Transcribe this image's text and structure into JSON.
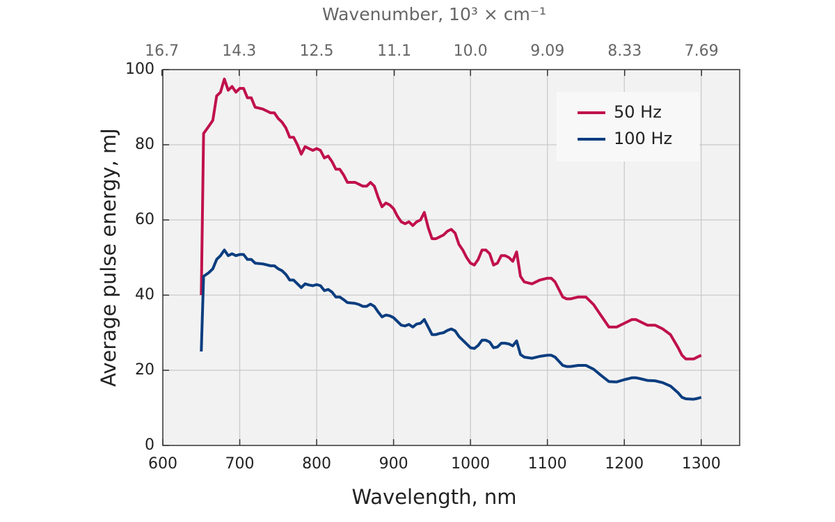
{
  "chart_data": {
    "type": "line",
    "xlabel": "Wavelength, nm",
    "ylabel": "Average pulse energy, mJ",
    "x2label": "Wavenumber, 10³ × cm⁻¹",
    "x": [
      650,
      653,
      660,
      665,
      670,
      675,
      680,
      685,
      690,
      695,
      700,
      705,
      710,
      715,
      720,
      730,
      740,
      745,
      750,
      755,
      760,
      765,
      770,
      775,
      780,
      785,
      790,
      795,
      800,
      805,
      810,
      815,
      820,
      825,
      830,
      835,
      840,
      850,
      855,
      860,
      865,
      870,
      875,
      880,
      885,
      890,
      895,
      900,
      905,
      910,
      915,
      920,
      925,
      930,
      935,
      940,
      945,
      950,
      955,
      960,
      965,
      970,
      975,
      980,
      985,
      990,
      995,
      1000,
      1005,
      1010,
      1015,
      1020,
      1025,
      1030,
      1035,
      1040,
      1045,
      1050,
      1055,
      1060,
      1065,
      1070,
      1080,
      1090,
      1100,
      1105,
      1110,
      1120,
      1125,
      1130,
      1140,
      1150,
      1155,
      1160,
      1170,
      1180,
      1190,
      1200,
      1210,
      1215,
      1220,
      1230,
      1240,
      1250,
      1260,
      1270,
      1275,
      1280,
      1290,
      1295,
      1300
    ],
    "series": [
      {
        "name": "50 Hz",
        "color": "#c0114b",
        "values": [
          40,
          83,
          85,
          86.5,
          93,
          94,
          97.5,
          94.5,
          95.5,
          94,
          95,
          95,
          92.5,
          92.5,
          90,
          89.5,
          88.5,
          88.5,
          87,
          86,
          84.5,
          82,
          82,
          80,
          77.5,
          79.5,
          79,
          78.5,
          79,
          78.5,
          76.5,
          77,
          75.5,
          73.5,
          73.5,
          72,
          70,
          70,
          69.5,
          69,
          69,
          70,
          69,
          66,
          63.5,
          64.5,
          64,
          63,
          61,
          59.5,
          59,
          59.5,
          58.5,
          59.5,
          60,
          62,
          58,
          55,
          55,
          55.5,
          56,
          57,
          57.5,
          56.5,
          53.5,
          52,
          50,
          48.5,
          48,
          49.5,
          52,
          52,
          51,
          48,
          48.5,
          50.5,
          50.5,
          50,
          49,
          51.5,
          45,
          43.5,
          43,
          44,
          44.5,
          44.5,
          43.5,
          39.5,
          39,
          39,
          39.5,
          39.5,
          38.5,
          37.5,
          34.5,
          31.5,
          31.5,
          32.5,
          33.5,
          33.5,
          33,
          32,
          32,
          31,
          29.5,
          26,
          24,
          23,
          23,
          23.5,
          24
        ]
      },
      {
        "name": "100 Hz",
        "color": "#0b3d7f",
        "values": [
          25,
          45,
          46,
          47,
          49.5,
          50.5,
          52,
          50.5,
          51,
          50.5,
          50.8,
          50.8,
          49.5,
          49.5,
          48.5,
          48.3,
          47.8,
          47.8,
          47,
          46.5,
          45.5,
          44,
          44,
          43,
          42,
          43,
          42.7,
          42.5,
          42.8,
          42.5,
          41.2,
          41.5,
          40.8,
          39.5,
          39.5,
          38.8,
          38,
          37.8,
          37.5,
          37,
          37,
          37.6,
          37,
          35.5,
          34.2,
          34.7,
          34.5,
          34,
          33,
          32,
          31.8,
          32.2,
          31.5,
          32.3,
          32.5,
          33.5,
          31.5,
          29.5,
          29.5,
          29.8,
          30,
          30.6,
          31,
          30.5,
          29,
          28,
          27,
          26,
          25.8,
          26.6,
          28,
          28,
          27.5,
          26,
          26.2,
          27.2,
          27.2,
          27,
          26.5,
          27.8,
          24.2,
          23.5,
          23.2,
          23.7,
          24,
          24,
          23.5,
          21.3,
          21,
          21,
          21.3,
          21.3,
          20.8,
          20.3,
          18.6,
          17,
          16.9,
          17.5,
          18,
          18,
          17.8,
          17.3,
          17.2,
          16.7,
          15.8,
          14,
          12.8,
          12.4,
          12.3,
          12.5,
          12.8
        ]
      }
    ],
    "xlim": [
      600,
      1350
    ],
    "xticks": [
      600,
      700,
      800,
      900,
      1000,
      1100,
      1200,
      1300
    ],
    "ylim": [
      0,
      100
    ],
    "yticks": [
      0,
      20,
      40,
      60,
      80,
      100
    ],
    "x2lim": [
      16.6667,
      7.4074
    ],
    "x2scale": "reciprocal",
    "x2ticks": [
      16.7,
      14.3,
      12.5,
      11.1,
      {
        "value": 10.0,
        "label": "10.0"
      },
      9.09,
      8.33,
      7.69
    ],
    "grid": true,
    "legend": "upper right"
  }
}
